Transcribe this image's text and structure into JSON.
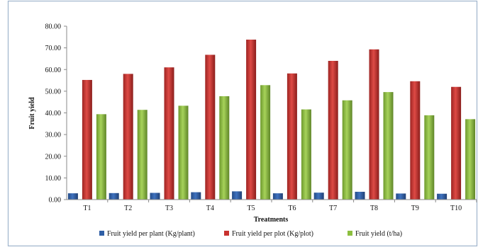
{
  "chart_data": {
    "type": "bar",
    "xlabel": "Treatments",
    "ylabel": "Fruit yield",
    "ylim": [
      0,
      80
    ],
    "ytick_step": 10,
    "ytick_format_decimals": 2,
    "grid": false,
    "legend_position": "bottom",
    "categories": [
      "T1",
      "T2",
      "T3",
      "T4",
      "T5",
      "T6",
      "T7",
      "T8",
      "T9",
      "T10"
    ],
    "series": [
      {
        "name": "Fruit yield per plant (Kg/plant)",
        "color": "#2f5fa6",
        "values": [
          2.9,
          3.0,
          3.1,
          3.4,
          3.8,
          2.9,
          3.2,
          3.6,
          2.8,
          2.7
        ]
      },
      {
        "name": "Fruit yield per plot (Kg/plot)",
        "color": "#c8312f",
        "values": [
          55.2,
          58.0,
          61.0,
          66.8,
          73.8,
          58.2,
          64.0,
          69.3,
          54.6,
          52.0
        ]
      },
      {
        "name": "Fruit yield (t/ha)",
        "color": "#8cbf3f",
        "values": [
          39.4,
          41.4,
          43.3,
          47.7,
          52.8,
          41.6,
          45.8,
          49.6,
          38.9,
          37.1
        ]
      }
    ]
  }
}
